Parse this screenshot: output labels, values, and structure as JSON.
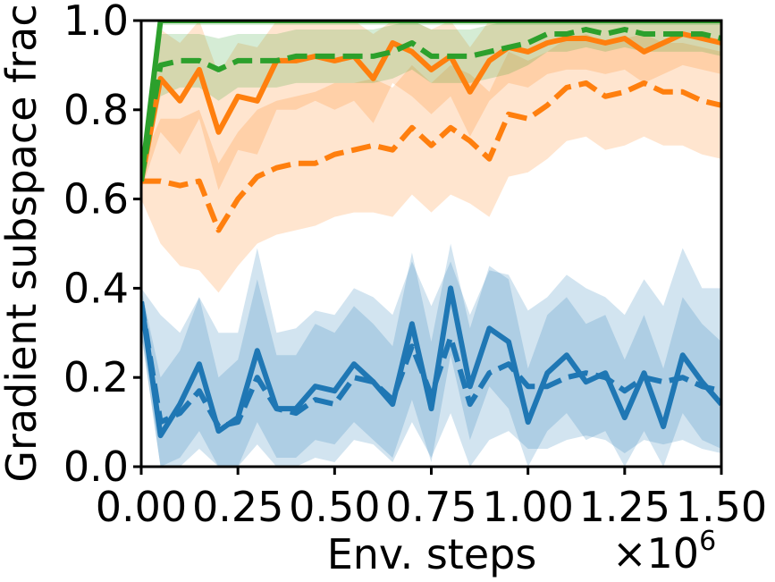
{
  "chart_data": {
    "type": "line",
    "title": "",
    "xlabel": "Env. steps",
    "ylabel": "Gradient subspace frac",
    "x_multiplier_label": "×10",
    "x_multiplier_exponent": "6",
    "xlim": [
      0,
      1.5
    ],
    "ylim": [
      0,
      1.0
    ],
    "xticks": [
      0.0,
      0.25,
      0.5,
      0.75,
      1.0,
      1.25,
      1.5
    ],
    "xtick_labels": [
      "0.00",
      "0.25",
      "0.50",
      "0.75",
      "1.00",
      "1.25",
      "1.50"
    ],
    "yticks": [
      0.0,
      0.2,
      0.4,
      0.6,
      0.8,
      1.0
    ],
    "ytick_labels": [
      "0.0",
      "0.2",
      "0.4",
      "0.6",
      "0.8",
      "1.0"
    ],
    "grid": false,
    "legend": false,
    "x": [
      0.0,
      0.05,
      0.1,
      0.15,
      0.2,
      0.25,
      0.3,
      0.35,
      0.4,
      0.45,
      0.5,
      0.55,
      0.6,
      0.65,
      0.7,
      0.75,
      0.8,
      0.85,
      0.9,
      0.95,
      1.0,
      1.05,
      1.1,
      1.15,
      1.2,
      1.25,
      1.3,
      1.35,
      1.4,
      1.45,
      1.5
    ],
    "series": [
      {
        "color": "#1f77b4",
        "style": "solid",
        "values": [
          0.37,
          0.07,
          0.14,
          0.23,
          0.08,
          0.11,
          0.26,
          0.13,
          0.13,
          0.18,
          0.17,
          0.23,
          0.19,
          0.14,
          0.32,
          0.13,
          0.4,
          0.18,
          0.31,
          0.28,
          0.1,
          0.21,
          0.25,
          0.19,
          0.21,
          0.11,
          0.21,
          0.09,
          0.25,
          0.19,
          0.14
        ],
        "lower": [
          0.3,
          0.0,
          0.02,
          0.08,
          0.0,
          0.0,
          0.1,
          0.02,
          0.02,
          0.06,
          0.05,
          0.1,
          0.06,
          0.02,
          0.15,
          0.01,
          0.25,
          0.06,
          0.18,
          0.13,
          0.0,
          0.08,
          0.12,
          0.06,
          0.08,
          0.0,
          0.08,
          0.0,
          0.12,
          0.06,
          0.04
        ],
        "upper": [
          0.4,
          0.2,
          0.26,
          0.38,
          0.2,
          0.24,
          0.42,
          0.25,
          0.25,
          0.32,
          0.3,
          0.36,
          0.32,
          0.27,
          0.48,
          0.28,
          0.5,
          0.31,
          0.45,
          0.42,
          0.22,
          0.34,
          0.38,
          0.32,
          0.34,
          0.24,
          0.34,
          0.22,
          0.38,
          0.32,
          0.28
        ]
      },
      {
        "color": "#1f77b4",
        "style": "dashed",
        "values": [
          0.37,
          0.1,
          0.12,
          0.17,
          0.09,
          0.1,
          0.2,
          0.13,
          0.12,
          0.15,
          0.14,
          0.2,
          0.19,
          0.15,
          0.27,
          0.16,
          0.29,
          0.14,
          0.21,
          0.23,
          0.18,
          0.18,
          0.2,
          0.21,
          0.2,
          0.17,
          0.2,
          0.19,
          0.2,
          0.18,
          0.17
        ],
        "lower": [
          0.3,
          0.0,
          0.0,
          0.04,
          0.0,
          0.0,
          0.05,
          0.0,
          0.0,
          0.02,
          0.01,
          0.06,
          0.05,
          0.01,
          0.1,
          0.02,
          0.12,
          0.0,
          0.06,
          0.08,
          0.04,
          0.04,
          0.06,
          0.07,
          0.06,
          0.03,
          0.06,
          0.05,
          0.06,
          0.04,
          0.03
        ],
        "upper": [
          0.4,
          0.34,
          0.3,
          0.38,
          0.3,
          0.3,
          0.49,
          0.3,
          0.31,
          0.35,
          0.34,
          0.4,
          0.38,
          0.34,
          0.46,
          0.36,
          0.46,
          0.34,
          0.44,
          0.43,
          0.35,
          0.38,
          0.43,
          0.4,
          0.38,
          0.34,
          0.42,
          0.36,
          0.49,
          0.4,
          0.4
        ]
      },
      {
        "color": "#ff7f0e",
        "style": "solid",
        "values": [
          0.64,
          0.87,
          0.82,
          0.89,
          0.75,
          0.83,
          0.82,
          0.91,
          0.91,
          0.92,
          0.91,
          0.92,
          0.87,
          0.95,
          0.93,
          0.89,
          0.92,
          0.84,
          0.91,
          0.94,
          0.93,
          0.95,
          0.96,
          0.96,
          0.95,
          0.96,
          0.93,
          0.95,
          0.97,
          0.96,
          0.95
        ],
        "lower": [
          0.62,
          0.75,
          0.7,
          0.78,
          0.62,
          0.71,
          0.7,
          0.8,
          0.8,
          0.82,
          0.8,
          0.82,
          0.77,
          0.86,
          0.83,
          0.79,
          0.83,
          0.74,
          0.82,
          0.86,
          0.85,
          0.88,
          0.89,
          0.89,
          0.88,
          0.89,
          0.86,
          0.88,
          0.9,
          0.89,
          0.88
        ],
        "upper": [
          0.66,
          0.98,
          0.95,
          1.0,
          0.88,
          0.95,
          0.94,
          1.0,
          1.0,
          1.0,
          1.0,
          1.0,
          0.97,
          1.0,
          1.0,
          0.98,
          1.0,
          0.94,
          1.0,
          1.0,
          1.0,
          1.0,
          1.0,
          1.0,
          1.0,
          1.0,
          1.0,
          1.0,
          1.0,
          1.0,
          1.0
        ]
      },
      {
        "color": "#ff7f0e",
        "style": "dashed",
        "values": [
          0.64,
          0.64,
          0.63,
          0.64,
          0.53,
          0.6,
          0.65,
          0.67,
          0.68,
          0.68,
          0.7,
          0.71,
          0.72,
          0.71,
          0.76,
          0.72,
          0.76,
          0.73,
          0.69,
          0.79,
          0.78,
          0.81,
          0.85,
          0.86,
          0.83,
          0.84,
          0.86,
          0.84,
          0.84,
          0.82,
          0.81
        ],
        "lower": [
          0.6,
          0.5,
          0.45,
          0.44,
          0.39,
          0.45,
          0.5,
          0.52,
          0.53,
          0.54,
          0.56,
          0.57,
          0.57,
          0.56,
          0.61,
          0.57,
          0.61,
          0.59,
          0.56,
          0.65,
          0.66,
          0.69,
          0.73,
          0.74,
          0.71,
          0.72,
          0.74,
          0.72,
          0.72,
          0.7,
          0.69
        ],
        "upper": [
          0.68,
          0.78,
          0.78,
          0.8,
          0.68,
          0.75,
          0.8,
          0.82,
          0.83,
          0.84,
          0.86,
          0.86,
          0.87,
          0.85,
          0.9,
          0.86,
          0.9,
          0.88,
          0.84,
          0.93,
          0.91,
          0.93,
          0.96,
          0.97,
          0.95,
          0.96,
          0.97,
          0.95,
          0.95,
          0.94,
          0.93
        ]
      },
      {
        "color": "#2ca02c",
        "style": "solid",
        "values": [
          0.64,
          1.0,
          1.0,
          1.0,
          1.0,
          1.0,
          1.0,
          1.0,
          1.0,
          1.0,
          1.0,
          1.0,
          1.0,
          1.0,
          1.0,
          1.0,
          1.0,
          1.0,
          1.0,
          1.0,
          1.0,
          1.0,
          1.0,
          1.0,
          1.0,
          1.0,
          1.0,
          1.0,
          1.0,
          1.0,
          1.0
        ],
        "lower": [
          0.63,
          0.99,
          0.99,
          0.99,
          0.99,
          0.99,
          0.99,
          0.99,
          0.99,
          0.99,
          0.99,
          0.99,
          0.99,
          0.99,
          0.99,
          0.99,
          0.99,
          0.99,
          0.99,
          0.99,
          0.99,
          0.99,
          0.99,
          0.99,
          0.99,
          0.99,
          0.99,
          0.99,
          0.99,
          0.99,
          0.99
        ],
        "upper": [
          0.65,
          1.0,
          1.0,
          1.0,
          1.0,
          1.0,
          1.0,
          1.0,
          1.0,
          1.0,
          1.0,
          1.0,
          1.0,
          1.0,
          1.0,
          1.0,
          1.0,
          1.0,
          1.0,
          1.0,
          1.0,
          1.0,
          1.0,
          1.0,
          1.0,
          1.0,
          1.0,
          1.0,
          1.0,
          1.0,
          1.0
        ]
      },
      {
        "color": "#2ca02c",
        "style": "dashed",
        "values": [
          0.64,
          0.9,
          0.91,
          0.91,
          0.89,
          0.91,
          0.91,
          0.91,
          0.92,
          0.92,
          0.92,
          0.92,
          0.92,
          0.93,
          0.95,
          0.92,
          0.92,
          0.92,
          0.93,
          0.94,
          0.95,
          0.97,
          0.97,
          0.98,
          0.97,
          0.98,
          0.97,
          0.97,
          0.97,
          0.97,
          0.96
        ],
        "lower": [
          0.62,
          0.83,
          0.85,
          0.85,
          0.82,
          0.85,
          0.85,
          0.85,
          0.86,
          0.86,
          0.86,
          0.86,
          0.86,
          0.87,
          0.89,
          0.86,
          0.86,
          0.86,
          0.87,
          0.88,
          0.9,
          0.93,
          0.93,
          0.94,
          0.93,
          0.94,
          0.93,
          0.93,
          0.93,
          0.93,
          0.92
        ],
        "upper": [
          0.66,
          0.97,
          0.97,
          0.97,
          0.96,
          0.97,
          0.97,
          0.97,
          0.98,
          0.98,
          0.98,
          0.98,
          0.98,
          0.99,
          1.0,
          0.98,
          0.98,
          0.98,
          0.99,
          1.0,
          1.0,
          1.0,
          1.0,
          1.0,
          1.0,
          1.0,
          1.0,
          1.0,
          1.0,
          1.0,
          1.0
        ]
      }
    ]
  }
}
